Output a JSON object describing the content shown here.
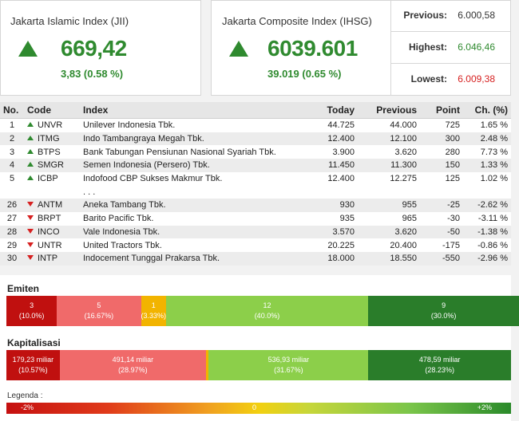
{
  "jii": {
    "title": "Jakarta Islamic Index (JII)",
    "value": "669,42",
    "change": "3,83 (0.58 %)"
  },
  "ihsg": {
    "title": "Jakarta Composite Index (IHSG)",
    "value": "6039.601",
    "change": "39.019 (0.65 %)"
  },
  "stats": {
    "previous_label": "Previous:",
    "previous_value": "6.000,58",
    "highest_label": "Highest:",
    "highest_value": "6.046,46",
    "lowest_label": "Lowest:",
    "lowest_value": "6.009,38"
  },
  "table": {
    "headers": {
      "no": "No.",
      "code": "Code",
      "index": "Index",
      "today": "Today",
      "previous": "Previous",
      "point": "Point",
      "ch": "Ch. (%)"
    },
    "ellipsis": ". . .",
    "rows": [
      {
        "no": "1",
        "dir": "up",
        "code": "UNVR",
        "name": "Unilever Indonesia Tbk.",
        "today": "44.725",
        "previous": "44.000",
        "point": "725",
        "ch": "1.65 %"
      },
      {
        "no": "2",
        "dir": "up",
        "code": "ITMG",
        "name": "Indo Tambangraya Megah Tbk.",
        "today": "12.400",
        "previous": "12.100",
        "point": "300",
        "ch": "2.48 %"
      },
      {
        "no": "3",
        "dir": "up",
        "code": "BTPS",
        "name": "Bank Tabungan Pensiunan Nasional Syariah Tbk.",
        "today": "3.900",
        "previous": "3.620",
        "point": "280",
        "ch": "7.73 %"
      },
      {
        "no": "4",
        "dir": "up",
        "code": "SMGR",
        "name": "Semen Indonesia (Persero) Tbk.",
        "today": "11.450",
        "previous": "11.300",
        "point": "150",
        "ch": "1.33 %"
      },
      {
        "no": "5",
        "dir": "up",
        "code": "ICBP",
        "name": "Indofood CBP Sukses Makmur Tbk.",
        "today": "12.400",
        "previous": "12.275",
        "point": "125",
        "ch": "1.02 %"
      },
      {
        "no": "26",
        "dir": "down",
        "code": "ANTM",
        "name": "Aneka Tambang Tbk.",
        "today": "930",
        "previous": "955",
        "point": "-25",
        "ch": "-2.62 %"
      },
      {
        "no": "27",
        "dir": "down",
        "code": "BRPT",
        "name": "Barito Pacific Tbk.",
        "today": "935",
        "previous": "965",
        "point": "-30",
        "ch": "-3.11 %"
      },
      {
        "no": "28",
        "dir": "down",
        "code": "INCO",
        "name": "Vale Indonesia Tbk.",
        "today": "3.570",
        "previous": "3.620",
        "point": "-50",
        "ch": "-1.38 %"
      },
      {
        "no": "29",
        "dir": "down",
        "code": "UNTR",
        "name": "United Tractors Tbk.",
        "today": "20.225",
        "previous": "20.400",
        "point": "-175",
        "ch": "-0.86 %"
      },
      {
        "no": "30",
        "dir": "down",
        "code": "INTP",
        "name": "Indocement Tunggal Prakarsa Tbk.",
        "today": "18.000",
        "previous": "18.550",
        "point": "-550",
        "ch": "-2.96 %"
      }
    ]
  },
  "emiten": {
    "title": "Emiten",
    "segments": [
      {
        "value": "3",
        "pct": "(10.0%)",
        "share": 10.0,
        "color": "#c0100f"
      },
      {
        "value": "5",
        "pct": "(16.67%)",
        "share": 16.67,
        "color": "#f06a6a"
      },
      {
        "value": "1",
        "pct": "(3.33%)",
        "share": 3.33,
        "color": "#f2b400"
      },
      {
        "value": "12",
        "pct": "(40.0%)",
        "share": 40.0,
        "color": "#8ccf4a"
      },
      {
        "value": "9",
        "pct": "(30.0%)",
        "share": 30.0,
        "color": "#2a7d2a"
      }
    ]
  },
  "kapitalisasi": {
    "title": "Kapitalisasi",
    "segments": [
      {
        "value": "179,23 miliar",
        "pct": "(10.57%)",
        "share": 10.57,
        "color": "#c0100f"
      },
      {
        "value": "491,14 miliar",
        "pct": "(28.97%)",
        "share": 28.97,
        "color": "#f06a6a"
      },
      {
        "value": "",
        "pct": "",
        "share": 0.55,
        "color": "#f2b400"
      },
      {
        "value": "536,93 miliar",
        "pct": "(31.67%)",
        "share": 31.67,
        "color": "#8ccf4a"
      },
      {
        "value": "478,59 miliar",
        "pct": "(28.23%)",
        "share": 28.23,
        "color": "#2a7d2a"
      }
    ]
  },
  "legend": {
    "title": "Legenda :",
    "min": "-2%",
    "mid": "0",
    "max": "+2%"
  }
}
